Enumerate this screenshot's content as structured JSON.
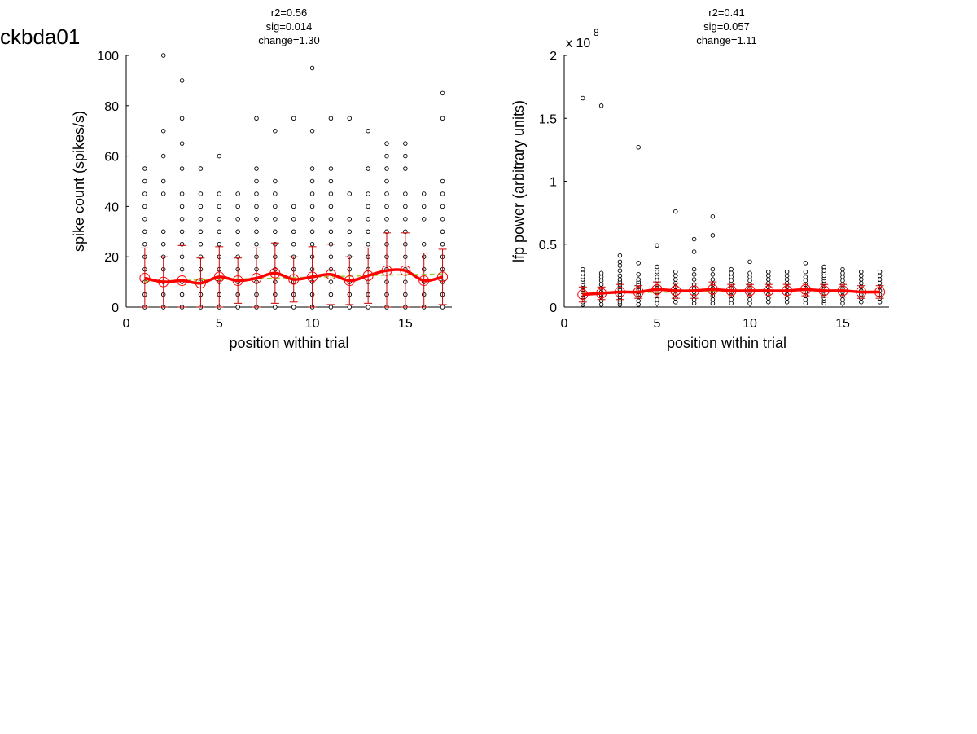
{
  "figure_title": "ckbda01",
  "colors": {
    "mean_line": "#ff0000",
    "fit_line": "#9acd32",
    "error_bar": "#cc0000",
    "mean_marker": "#ff0000",
    "points": "#000000"
  },
  "chart_data": [
    {
      "type": "scatter",
      "stats": [
        "r2=0.56",
        "sig=0.014",
        "change=1.30"
      ],
      "xlabel": "position within trial",
      "ylabel": "spike count (spikes/s)",
      "xlim": [
        0,
        17.5
      ],
      "ylim": [
        0,
        100
      ],
      "xticks": [
        0,
        5,
        10,
        15
      ],
      "xtick_labels": [
        "0",
        "5",
        "10",
        "15"
      ],
      "yticks": [
        0,
        20,
        40,
        60,
        80,
        100
      ],
      "ytick_labels": [
        "0",
        "20",
        "40",
        "60",
        "80",
        "100"
      ],
      "exponent_label": "",
      "grid": false,
      "points": [
        [
          1,
          [
            0,
            5,
            10,
            15,
            20,
            25,
            30,
            35,
            40,
            45,
            50,
            55
          ]
        ],
        [
          2,
          [
            0,
            5,
            10,
            15,
            20,
            25,
            30,
            45,
            50,
            60,
            70,
            100
          ]
        ],
        [
          3,
          [
            0,
            5,
            10,
            15,
            20,
            25,
            30,
            35,
            40,
            45,
            55,
            65,
            75,
            90
          ]
        ],
        [
          4,
          [
            0,
            5,
            10,
            15,
            20,
            25,
            30,
            35,
            40,
            45,
            55
          ]
        ],
        [
          5,
          [
            0,
            5,
            10,
            15,
            20,
            25,
            30,
            35,
            40,
            45,
            60
          ]
        ],
        [
          6,
          [
            0,
            5,
            10,
            15,
            20,
            25,
            30,
            35,
            40,
            45
          ]
        ],
        [
          7,
          [
            0,
            5,
            10,
            15,
            20,
            25,
            30,
            35,
            40,
            45,
            50,
            55,
            75
          ]
        ],
        [
          8,
          [
            0,
            5,
            10,
            15,
            20,
            25,
            30,
            35,
            40,
            45,
            50,
            70
          ]
        ],
        [
          9,
          [
            0,
            5,
            10,
            15,
            20,
            25,
            30,
            35,
            40,
            75
          ]
        ],
        [
          10,
          [
            0,
            5,
            10,
            15,
            20,
            25,
            30,
            35,
            40,
            45,
            50,
            55,
            70,
            95
          ]
        ],
        [
          11,
          [
            0,
            5,
            10,
            15,
            20,
            25,
            30,
            35,
            40,
            45,
            50,
            55,
            75
          ]
        ],
        [
          12,
          [
            0,
            5,
            10,
            15,
            20,
            25,
            30,
            35,
            45,
            75
          ]
        ],
        [
          13,
          [
            0,
            5,
            10,
            15,
            20,
            25,
            30,
            35,
            40,
            45,
            55,
            70
          ]
        ],
        [
          14,
          [
            0,
            5,
            10,
            15,
            20,
            25,
            30,
            35,
            40,
            45,
            50,
            55,
            60,
            65
          ]
        ],
        [
          15,
          [
            0,
            5,
            10,
            15,
            20,
            25,
            30,
            35,
            40,
            45,
            55,
            60,
            65
          ]
        ],
        [
          16,
          [
            0,
            5,
            10,
            15,
            20,
            25,
            35,
            40,
            45
          ]
        ],
        [
          17,
          [
            0,
            5,
            10,
            15,
            20,
            25,
            30,
            35,
            40,
            45,
            50,
            75,
            85
          ]
        ]
      ],
      "mean": [
        11.5,
        10,
        10.5,
        9.5,
        12,
        10.5,
        11.5,
        13.5,
        11,
        12,
        13,
        10.5,
        12.5,
        14.5,
        14.5,
        10.5,
        12
      ],
      "error": [
        12,
        10,
        14,
        10,
        12,
        9,
        12,
        12,
        9,
        12,
        12,
        9.5,
        11,
        15,
        15,
        11,
        11
      ],
      "fit": [
        10.2,
        10.4,
        10.6,
        10.8,
        11.0,
        11.2,
        11.3,
        11.5,
        11.7,
        11.9,
        12.1,
        12.3,
        12.5,
        12.7,
        12.9,
        13.0,
        13.2
      ]
    },
    {
      "type": "scatter",
      "stats": [
        "r2=0.41",
        "sig=0.057",
        "change=1.11"
      ],
      "xlabel": "position within trial",
      "ylabel": "lfp power (arbitrary units)",
      "xlim": [
        0,
        17.5
      ],
      "ylim": [
        0,
        2
      ],
      "xticks": [
        0,
        5,
        10,
        15
      ],
      "xtick_labels": [
        "0",
        "5",
        "10",
        "15"
      ],
      "yticks": [
        0,
        0.5,
        1,
        1.5,
        2
      ],
      "ytick_labels": [
        "0",
        "0.5",
        "1",
        "1.5",
        "2"
      ],
      "exponent_label": "x 10",
      "exponent_value": "8",
      "grid": false,
      "points": [
        [
          1,
          [
            0.02,
            0.04,
            0.06,
            0.08,
            0.1,
            0.12,
            0.14,
            0.16,
            0.18,
            0.2,
            0.22,
            0.24,
            0.27,
            0.3,
            1.66
          ]
        ],
        [
          2,
          [
            0.02,
            0.05,
            0.08,
            0.1,
            0.12,
            0.15,
            0.18,
            0.21,
            0.24,
            0.27,
            1.6
          ]
        ],
        [
          3,
          [
            0.02,
            0.04,
            0.06,
            0.08,
            0.1,
            0.12,
            0.14,
            0.16,
            0.18,
            0.2,
            0.22,
            0.25,
            0.29,
            0.33,
            0.36,
            0.41
          ]
        ],
        [
          4,
          [
            0.02,
            0.05,
            0.08,
            0.1,
            0.12,
            0.14,
            0.16,
            0.18,
            0.2,
            0.22,
            0.26,
            0.35,
            1.27
          ]
        ],
        [
          5,
          [
            0.03,
            0.06,
            0.09,
            0.12,
            0.15,
            0.18,
            0.21,
            0.24,
            0.28,
            0.32,
            0.49
          ]
        ],
        [
          6,
          [
            0.04,
            0.07,
            0.1,
            0.13,
            0.16,
            0.19,
            0.22,
            0.25,
            0.28,
            0.76
          ]
        ],
        [
          7,
          [
            0.03,
            0.06,
            0.09,
            0.12,
            0.15,
            0.18,
            0.22,
            0.26,
            0.3,
            0.44,
            0.54
          ]
        ],
        [
          8,
          [
            0.03,
            0.06,
            0.09,
            0.12,
            0.15,
            0.18,
            0.22,
            0.26,
            0.3,
            0.57,
            0.72
          ]
        ],
        [
          9,
          [
            0.03,
            0.06,
            0.09,
            0.12,
            0.15,
            0.18,
            0.21,
            0.24,
            0.27,
            0.3
          ]
        ],
        [
          10,
          [
            0.03,
            0.06,
            0.09,
            0.12,
            0.15,
            0.18,
            0.21,
            0.24,
            0.27,
            0.36
          ]
        ],
        [
          11,
          [
            0.04,
            0.07,
            0.1,
            0.13,
            0.16,
            0.19,
            0.22,
            0.25,
            0.28
          ]
        ],
        [
          12,
          [
            0.04,
            0.07,
            0.1,
            0.13,
            0.16,
            0.19,
            0.22,
            0.25,
            0.28
          ]
        ],
        [
          13,
          [
            0.03,
            0.06,
            0.09,
            0.12,
            0.15,
            0.18,
            0.21,
            0.24,
            0.28,
            0.35
          ]
        ],
        [
          14,
          [
            0.03,
            0.05,
            0.07,
            0.09,
            0.11,
            0.13,
            0.15,
            0.17,
            0.19,
            0.21,
            0.23,
            0.25,
            0.27,
            0.29,
            0.31,
            0.32
          ]
        ],
        [
          15,
          [
            0.03,
            0.06,
            0.09,
            0.12,
            0.15,
            0.18,
            0.21,
            0.24,
            0.27,
            0.3
          ]
        ],
        [
          16,
          [
            0.04,
            0.07,
            0.1,
            0.13,
            0.16,
            0.19,
            0.22,
            0.25,
            0.28
          ]
        ],
        [
          17,
          [
            0.04,
            0.07,
            0.1,
            0.13,
            0.16,
            0.19,
            0.22,
            0.25,
            0.28
          ]
        ]
      ],
      "mean": [
        0.1,
        0.11,
        0.12,
        0.12,
        0.14,
        0.13,
        0.13,
        0.14,
        0.13,
        0.13,
        0.13,
        0.13,
        0.14,
        0.13,
        0.13,
        0.12,
        0.12
      ],
      "error": [
        0.06,
        0.05,
        0.06,
        0.05,
        0.06,
        0.06,
        0.06,
        0.06,
        0.05,
        0.05,
        0.05,
        0.05,
        0.05,
        0.05,
        0.05,
        0.05,
        0.05
      ],
      "fit": [
        0.11,
        0.112,
        0.114,
        0.116,
        0.118,
        0.12,
        0.122,
        0.124,
        0.126,
        0.128,
        0.13,
        0.132,
        0.134,
        0.132,
        0.13,
        0.128,
        0.126
      ]
    }
  ]
}
